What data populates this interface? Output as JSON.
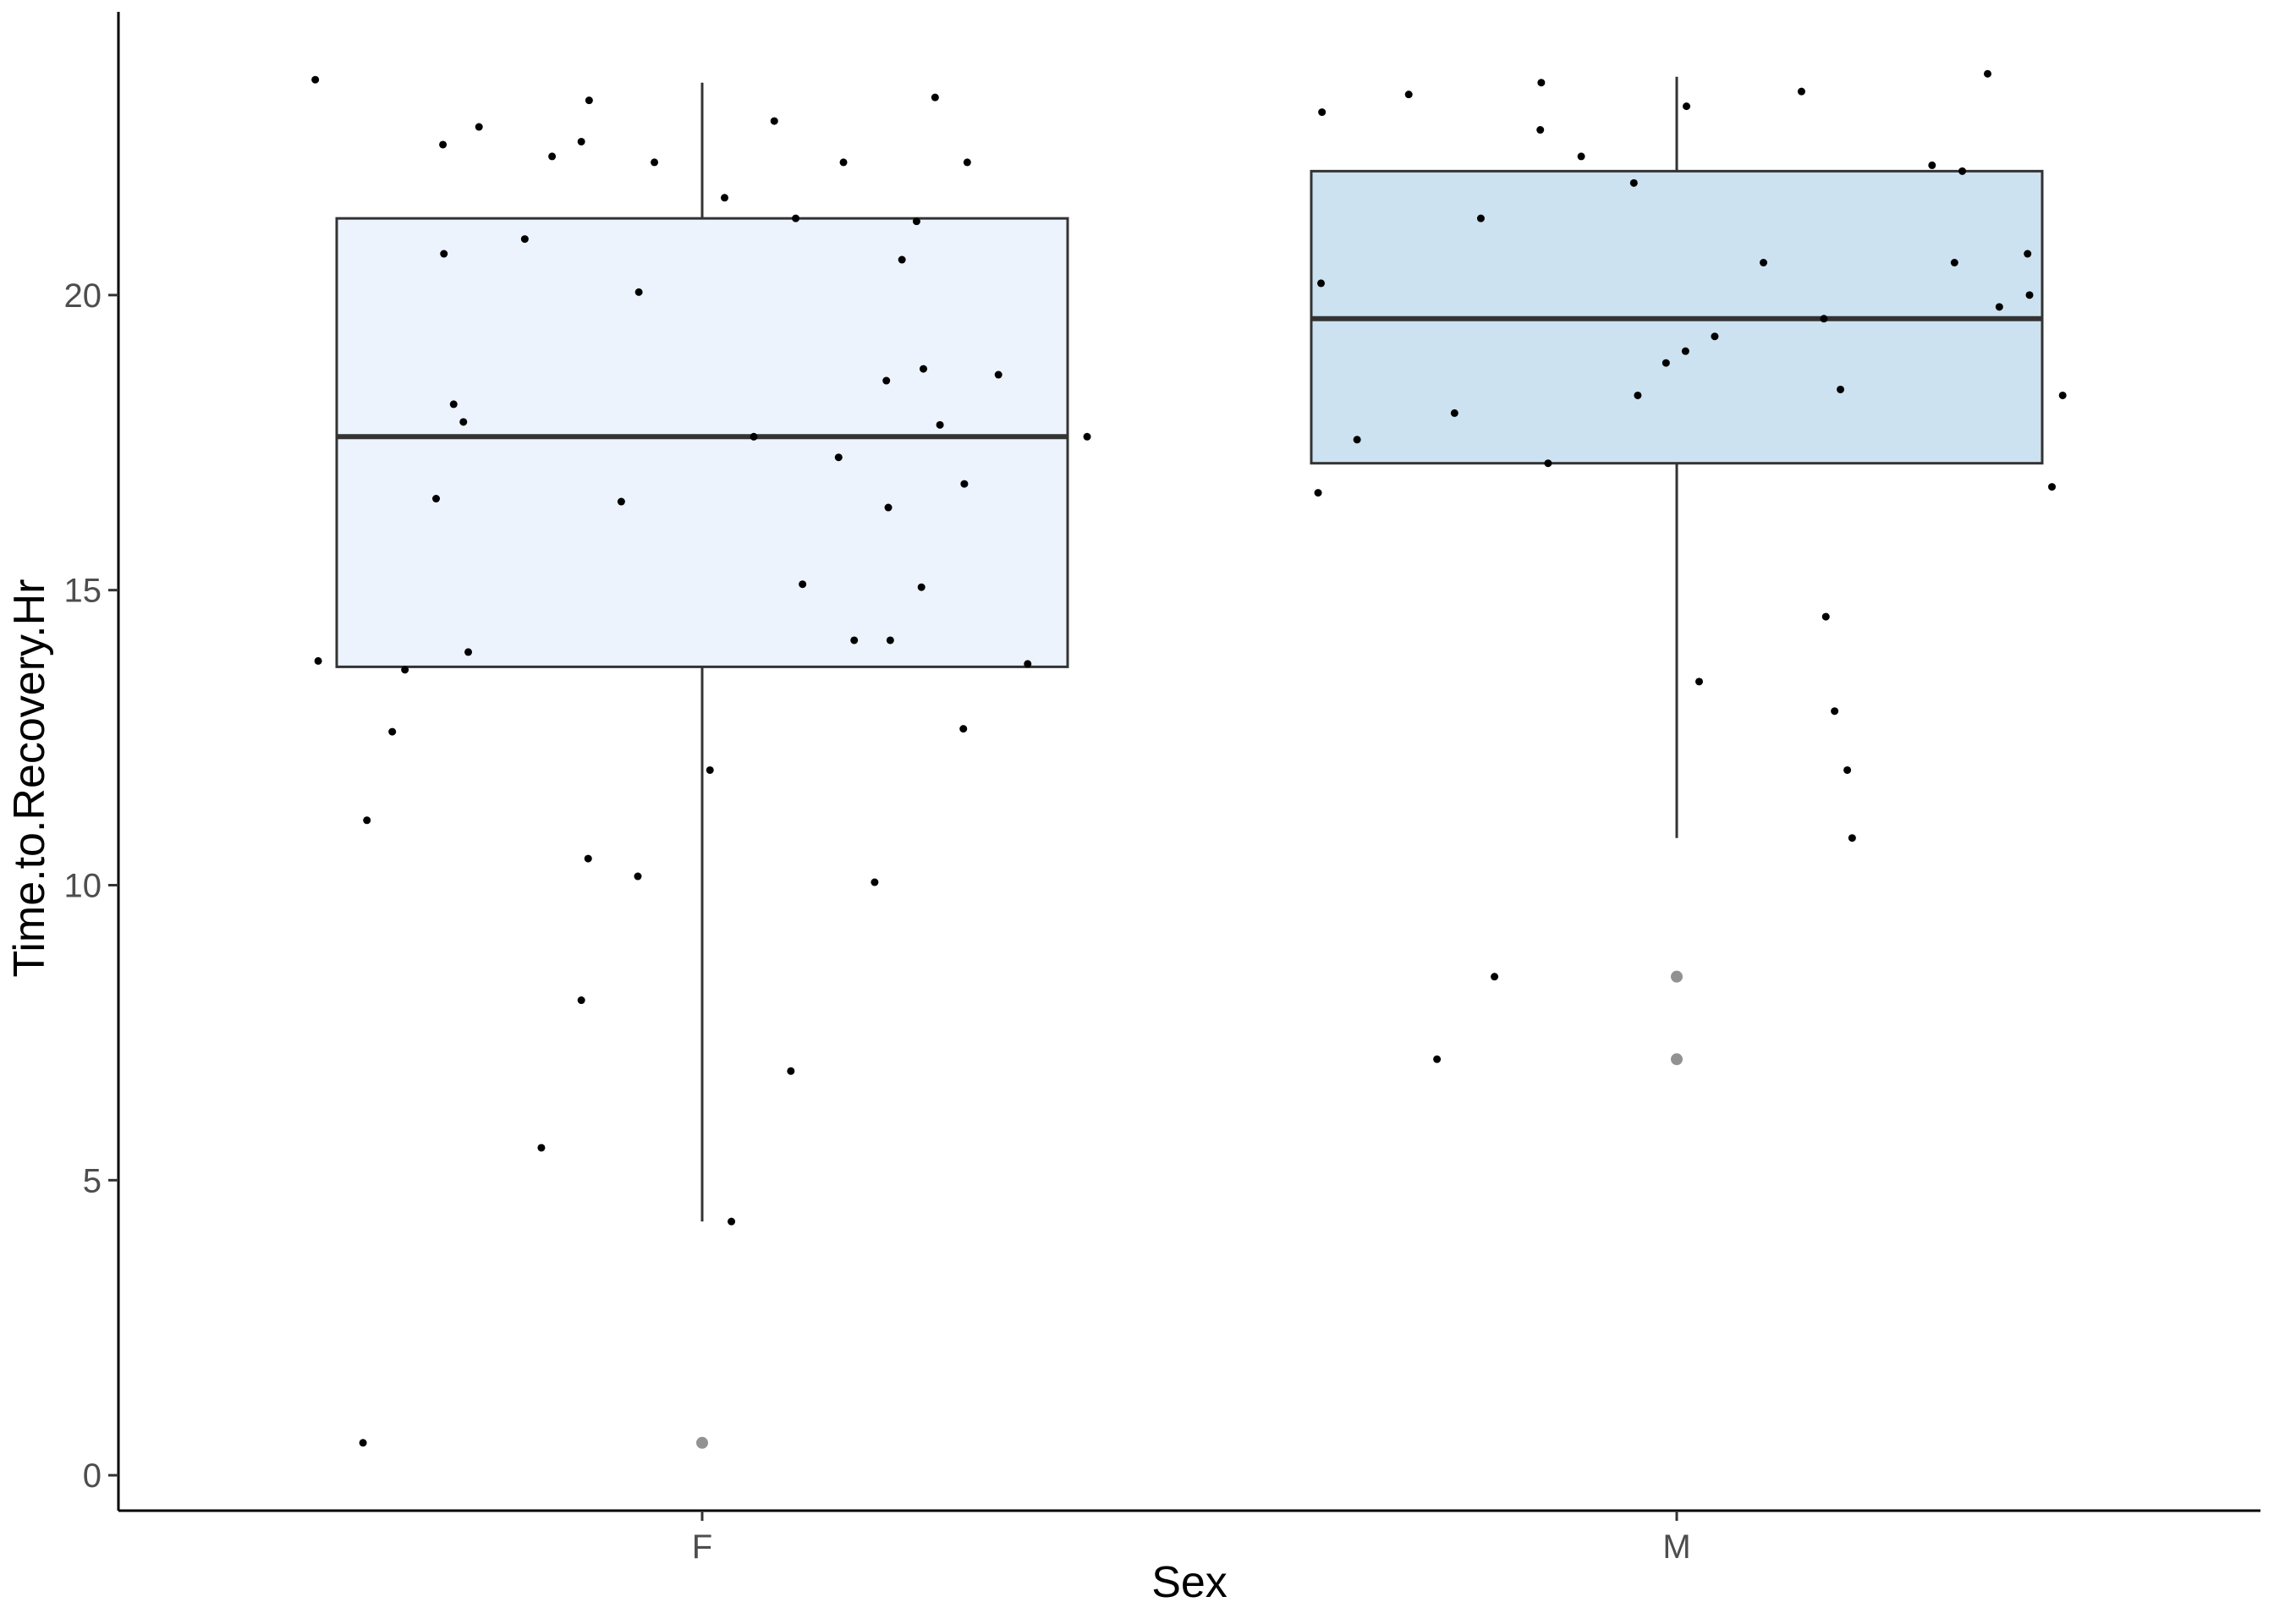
{
  "chart_data": {
    "type": "boxplot",
    "title": "",
    "xlabel": "Sex",
    "ylabel": "Time.to.Recovery.Hr",
    "ylim": [
      -0.6,
      24.8
    ],
    "yticks": [
      0,
      5,
      10,
      15,
      20
    ],
    "grid": false,
    "legend": "none",
    "categories": [
      "F",
      "M"
    ],
    "boxes": [
      {
        "category": "F",
        "fill": "#ecf3fc",
        "q1": 13.7,
        "median": 17.6,
        "q3": 21.3,
        "whisker_low": 4.3,
        "whisker_high": 23.6,
        "outliers": [
          0.55
        ]
      },
      {
        "category": "M",
        "fill": "#cce2f0",
        "q1": 17.15,
        "median": 19.6,
        "q3": 22.1,
        "whisker_low": 10.8,
        "whisker_high": 23.7,
        "outliers": [
          8.45,
          7.05
        ]
      }
    ],
    "points": [
      {
        "category": "F",
        "jitter": -0.397,
        "y": 23.65
      },
      {
        "category": "F",
        "jitter": -0.394,
        "y": 13.8
      },
      {
        "category": "F",
        "jitter": -0.348,
        "y": 0.55
      },
      {
        "category": "F",
        "jitter": -0.344,
        "y": 11.1
      },
      {
        "category": "F",
        "jitter": -0.318,
        "y": 12.6
      },
      {
        "category": "F",
        "jitter": -0.305,
        "y": 13.65
      },
      {
        "category": "F",
        "jitter": -0.273,
        "y": 16.55
      },
      {
        "category": "F",
        "jitter": -0.265,
        "y": 20.7
      },
      {
        "category": "F",
        "jitter": -0.266,
        "y": 22.55
      },
      {
        "category": "F",
        "jitter": -0.255,
        "y": 18.15
      },
      {
        "category": "F",
        "jitter": -0.245,
        "y": 17.85
      },
      {
        "category": "F",
        "jitter": -0.24,
        "y": 13.95
      },
      {
        "category": "F",
        "jitter": -0.229,
        "y": 22.85
      },
      {
        "category": "F",
        "jitter": -0.182,
        "y": 20.95
      },
      {
        "category": "F",
        "jitter": -0.165,
        "y": 5.55
      },
      {
        "category": "F",
        "jitter": -0.154,
        "y": 22.35
      },
      {
        "category": "F",
        "jitter": -0.124,
        "y": 8.05
      },
      {
        "category": "F",
        "jitter": -0.124,
        "y": 22.6
      },
      {
        "category": "F",
        "jitter": -0.117,
        "y": 10.45
      },
      {
        "category": "F",
        "jitter": -0.116,
        "y": 23.3
      },
      {
        "category": "F",
        "jitter": -0.083,
        "y": 16.5
      },
      {
        "category": "F",
        "jitter": -0.066,
        "y": 10.15
      },
      {
        "category": "F",
        "jitter": -0.065,
        "y": 20.05
      },
      {
        "category": "F",
        "jitter": -0.049,
        "y": 22.25
      },
      {
        "category": "F",
        "jitter": 0.008,
        "y": 11.95
      },
      {
        "category": "F",
        "jitter": 0.023,
        "y": 21.65
      },
      {
        "category": "F",
        "jitter": 0.03,
        "y": 4.3
      },
      {
        "category": "F",
        "jitter": 0.053,
        "y": 17.6
      },
      {
        "category": "F",
        "jitter": 0.074,
        "y": 22.95
      },
      {
        "category": "F",
        "jitter": 0.091,
        "y": 6.85
      },
      {
        "category": "F",
        "jitter": 0.096,
        "y": 21.3
      },
      {
        "category": "F",
        "jitter": 0.103,
        "y": 15.1
      },
      {
        "category": "F",
        "jitter": 0.14,
        "y": 17.25
      },
      {
        "category": "F",
        "jitter": 0.145,
        "y": 22.25
      },
      {
        "category": "F",
        "jitter": 0.156,
        "y": 14.15
      },
      {
        "category": "F",
        "jitter": 0.177,
        "y": 10.05
      },
      {
        "category": "F",
        "jitter": 0.189,
        "y": 18.55
      },
      {
        "category": "F",
        "jitter": 0.191,
        "y": 16.4
      },
      {
        "category": "F",
        "jitter": 0.193,
        "y": 14.15
      },
      {
        "category": "F",
        "jitter": 0.205,
        "y": 20.6
      },
      {
        "category": "F",
        "jitter": 0.22,
        "y": 21.25
      },
      {
        "category": "F",
        "jitter": 0.225,
        "y": 15.05
      },
      {
        "category": "F",
        "jitter": 0.227,
        "y": 18.75
      },
      {
        "category": "F",
        "jitter": 0.239,
        "y": 23.35
      },
      {
        "category": "F",
        "jitter": 0.244,
        "y": 17.8
      },
      {
        "category": "F",
        "jitter": 0.268,
        "y": 12.65
      },
      {
        "category": "F",
        "jitter": 0.269,
        "y": 16.8
      },
      {
        "category": "F",
        "jitter": 0.272,
        "y": 22.25
      },
      {
        "category": "F",
        "jitter": 0.304,
        "y": 18.65
      },
      {
        "category": "F",
        "jitter": 0.334,
        "y": 13.75
      },
      {
        "category": "F",
        "jitter": 0.395,
        "y": 17.6
      },
      {
        "category": "M",
        "jitter": -0.368,
        "y": 16.65
      },
      {
        "category": "M",
        "jitter": -0.365,
        "y": 20.2
      },
      {
        "category": "M",
        "jitter": -0.364,
        "y": 23.1
      },
      {
        "category": "M",
        "jitter": -0.328,
        "y": 17.55
      },
      {
        "category": "M",
        "jitter": -0.275,
        "y": 23.4
      },
      {
        "category": "M",
        "jitter": -0.246,
        "y": 7.05
      },
      {
        "category": "M",
        "jitter": -0.228,
        "y": 18.0
      },
      {
        "category": "M",
        "jitter": -0.201,
        "y": 21.3
      },
      {
        "category": "M",
        "jitter": -0.187,
        "y": 8.45
      },
      {
        "category": "M",
        "jitter": -0.14,
        "y": 22.8
      },
      {
        "category": "M",
        "jitter": -0.139,
        "y": 23.6
      },
      {
        "category": "M",
        "jitter": -0.132,
        "y": 17.15
      },
      {
        "category": "M",
        "jitter": -0.098,
        "y": 22.35
      },
      {
        "category": "M",
        "jitter": -0.044,
        "y": 21.9
      },
      {
        "category": "M",
        "jitter": -0.04,
        "y": 18.3
      },
      {
        "category": "M",
        "jitter": -0.011,
        "y": 18.85
      },
      {
        "category": "M",
        "jitter": 0.009,
        "y": 19.05
      },
      {
        "category": "M",
        "jitter": 0.01,
        "y": 23.2
      },
      {
        "category": "M",
        "jitter": 0.023,
        "y": 13.45
      },
      {
        "category": "M",
        "jitter": 0.039,
        "y": 19.3
      },
      {
        "category": "M",
        "jitter": 0.089,
        "y": 20.55
      },
      {
        "category": "M",
        "jitter": 0.128,
        "y": 23.45
      },
      {
        "category": "M",
        "jitter": 0.151,
        "y": 19.6
      },
      {
        "category": "M",
        "jitter": 0.153,
        "y": 14.55
      },
      {
        "category": "M",
        "jitter": 0.162,
        "y": 12.95
      },
      {
        "category": "M",
        "jitter": 0.168,
        "y": 18.4
      },
      {
        "category": "M",
        "jitter": 0.175,
        "y": 11.95
      },
      {
        "category": "M",
        "jitter": 0.18,
        "y": 10.8
      },
      {
        "category": "M",
        "jitter": 0.262,
        "y": 22.2
      },
      {
        "category": "M",
        "jitter": 0.285,
        "y": 20.55
      },
      {
        "category": "M",
        "jitter": 0.293,
        "y": 22.1
      },
      {
        "category": "M",
        "jitter": 0.319,
        "y": 23.75
      },
      {
        "category": "M",
        "jitter": 0.331,
        "y": 19.8
      },
      {
        "category": "M",
        "jitter": 0.36,
        "y": 20.7
      },
      {
        "category": "M",
        "jitter": 0.362,
        "y": 20.0
      },
      {
        "category": "M",
        "jitter": 0.385,
        "y": 16.75
      },
      {
        "category": "M",
        "jitter": 0.396,
        "y": 18.3
      }
    ]
  }
}
